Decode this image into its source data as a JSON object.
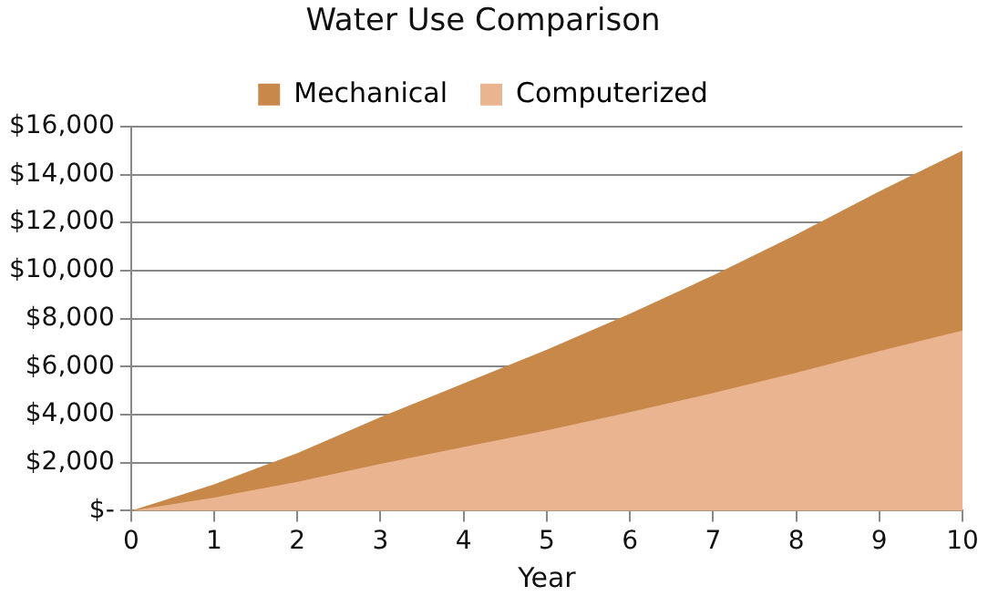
{
  "chart_data": {
    "type": "area",
    "title": "Water Use Comparison",
    "xlabel": "Year",
    "x": [
      0,
      1,
      2,
      3,
      4,
      5,
      6,
      7,
      8,
      9,
      10
    ],
    "series": [
      {
        "name": "Mechanical",
        "color": "#c8884a",
        "values": [
          0,
          1100,
          2400,
          3900,
          5300,
          6700,
          8200,
          9800,
          11500,
          13300,
          15000
        ]
      },
      {
        "name": "Computerized",
        "color": "#e9b48f",
        "values": [
          0,
          550,
          1200,
          1950,
          2650,
          3350,
          4100,
          4900,
          5750,
          6650,
          7500
        ]
      }
    ],
    "xlim": [
      0,
      10
    ],
    "xticks": [
      0,
      1,
      2,
      3,
      4,
      5,
      6,
      7,
      8,
      9,
      10
    ],
    "ylim": [
      0,
      16000
    ],
    "yticks": [
      {
        "value": 0,
        "label": "$-"
      },
      {
        "value": 2000,
        "label": "$2,000"
      },
      {
        "value": 4000,
        "label": "$4,000"
      },
      {
        "value": 6000,
        "label": "$6,000"
      },
      {
        "value": 8000,
        "label": "$8,000"
      },
      {
        "value": 10000,
        "label": "$10,000"
      },
      {
        "value": 12000,
        "label": "$12,000"
      },
      {
        "value": 14000,
        "label": "$14,000"
      },
      {
        "value": 16000,
        "label": "$16,000"
      }
    ],
    "grid": "y",
    "legend": "top"
  }
}
